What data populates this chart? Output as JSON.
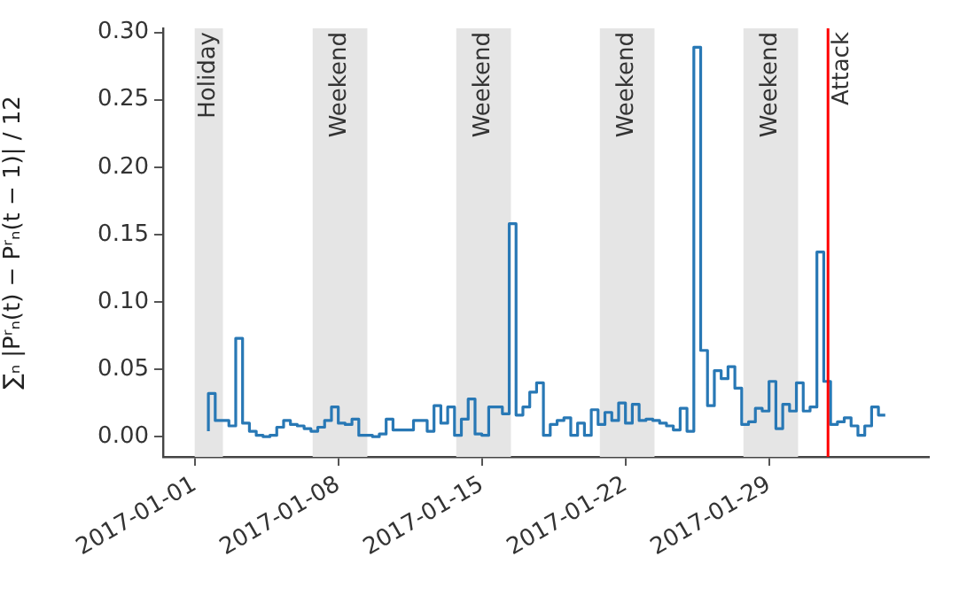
{
  "chart_data": {
    "type": "step",
    "ylabel": "∑ₙ |Pʳₙ(t) − Pʳₙ(t − 1)| / 12",
    "x": [
      "2017-01-01T16:00",
      "2017-01-02T00:00",
      "2017-01-02T08:00",
      "2017-01-02T16:00",
      "2017-01-03T00:00",
      "2017-01-03T08:00",
      "2017-01-03T16:00",
      "2017-01-04T00:00",
      "2017-01-04T08:00",
      "2017-01-04T16:00",
      "2017-01-05T00:00",
      "2017-01-05T08:00",
      "2017-01-05T16:00",
      "2017-01-06T00:00",
      "2017-01-06T08:00",
      "2017-01-06T16:00",
      "2017-01-07T00:00",
      "2017-01-07T08:00",
      "2017-01-07T16:00",
      "2017-01-08T00:00",
      "2017-01-08T08:00",
      "2017-01-08T16:00",
      "2017-01-09T00:00",
      "2017-01-09T08:00",
      "2017-01-09T16:00",
      "2017-01-10T00:00",
      "2017-01-10T08:00",
      "2017-01-10T16:00",
      "2017-01-11T00:00",
      "2017-01-11T08:00",
      "2017-01-11T16:00",
      "2017-01-12T00:00",
      "2017-01-12T08:00",
      "2017-01-12T16:00",
      "2017-01-13T00:00",
      "2017-01-13T08:00",
      "2017-01-13T16:00",
      "2017-01-14T00:00",
      "2017-01-14T08:00",
      "2017-01-14T16:00",
      "2017-01-15T00:00",
      "2017-01-15T08:00",
      "2017-01-15T16:00",
      "2017-01-16T00:00",
      "2017-01-16T08:00",
      "2017-01-16T16:00",
      "2017-01-17T00:00",
      "2017-01-17T08:00",
      "2017-01-17T16:00",
      "2017-01-18T00:00",
      "2017-01-18T08:00",
      "2017-01-18T16:00",
      "2017-01-19T00:00",
      "2017-01-19T08:00",
      "2017-01-19T16:00",
      "2017-01-20T00:00",
      "2017-01-20T08:00",
      "2017-01-20T16:00",
      "2017-01-21T00:00",
      "2017-01-21T08:00",
      "2017-01-21T16:00",
      "2017-01-22T00:00",
      "2017-01-22T08:00",
      "2017-01-22T16:00",
      "2017-01-23T00:00",
      "2017-01-23T08:00",
      "2017-01-23T16:00",
      "2017-01-24T00:00",
      "2017-01-24T08:00",
      "2017-01-24T16:00",
      "2017-01-25T00:00",
      "2017-01-25T08:00",
      "2017-01-25T16:00",
      "2017-01-26T00:00",
      "2017-01-26T08:00",
      "2017-01-26T16:00",
      "2017-01-27T00:00",
      "2017-01-27T08:00",
      "2017-01-27T16:00",
      "2017-01-28T00:00",
      "2017-01-28T08:00",
      "2017-01-28T16:00",
      "2017-01-29T00:00",
      "2017-01-29T08:00",
      "2017-01-29T16:00",
      "2017-01-30T00:00",
      "2017-01-30T08:00",
      "2017-01-30T16:00",
      "2017-01-31T00:00",
      "2017-01-31T08:00",
      "2017-01-31T16:00",
      "2017-02-01T00:00",
      "2017-02-01T08:00",
      "2017-02-01T16:00",
      "2017-02-02T00:00",
      "2017-02-02T08:00",
      "2017-02-02T16:00",
      "2017-02-03T00:00",
      "2017-02-03T08:00",
      "2017-02-03T16:00"
    ],
    "series": [
      {
        "color": "#2878b5",
        "values": [
          0.004,
          0.032,
          0.012,
          0.012,
          0.008,
          0.073,
          0.01,
          0.004,
          0.001,
          0.0,
          0.001,
          0.007,
          0.012,
          0.009,
          0.008,
          0.006,
          0.004,
          0.007,
          0.012,
          0.022,
          0.01,
          0.009,
          0.013,
          0.001,
          0.001,
          0.0,
          0.002,
          0.013,
          0.005,
          0.005,
          0.005,
          0.012,
          0.012,
          0.004,
          0.023,
          0.01,
          0.022,
          0.001,
          0.013,
          0.028,
          0.002,
          0.001,
          0.022,
          0.022,
          0.017,
          0.158,
          0.016,
          0.022,
          0.033,
          0.04,
          0.001,
          0.009,
          0.012,
          0.014,
          0.001,
          0.01,
          0.001,
          0.02,
          0.009,
          0.018,
          0.012,
          0.025,
          0.01,
          0.024,
          0.012,
          0.013,
          0.012,
          0.01,
          0.008,
          0.005,
          0.021,
          0.004,
          0.289,
          0.064,
          0.023,
          0.049,
          0.043,
          0.052,
          0.036,
          0.009,
          0.011,
          0.021,
          0.019,
          0.041,
          0.006,
          0.024,
          0.019,
          0.04,
          0.019,
          0.022,
          0.137,
          0.041,
          0.009,
          0.011,
          0.014,
          0.008,
          0.001,
          0.008,
          0.022,
          0.016
        ]
      }
    ],
    "xlim": [
      "2016-12-30T11:00",
      "2017-02-05T19:00"
    ],
    "xticks": [
      "2017-01-01",
      "2017-01-08",
      "2017-01-15",
      "2017-01-22",
      "2017-01-29"
    ],
    "ylim": [
      -0.015,
      0.303
    ],
    "yticks": [
      {
        "value": 0,
        "label": "0.00"
      },
      {
        "value": 0.05,
        "label": "0.05"
      },
      {
        "value": 0.1,
        "label": "0.10"
      },
      {
        "value": 0.15,
        "label": "0.15"
      },
      {
        "value": 0.2,
        "label": "0.20"
      },
      {
        "value": 0.25,
        "label": "0.25"
      },
      {
        "value": 0.3,
        "label": "0.30"
      }
    ],
    "bands": [
      {
        "axis": "x",
        "from": "2017-01-01T00:00",
        "to": "2017-01-02T09:00",
        "label": "Holiday",
        "color": "#e5e5e5"
      },
      {
        "axis": "x",
        "from": "2017-01-06T18:00",
        "to": "2017-01-09T10:00",
        "label": "Weekend",
        "color": "#e5e5e5"
      },
      {
        "axis": "x",
        "from": "2017-01-13T18:00",
        "to": "2017-01-16T10:00",
        "label": "Weekend",
        "color": "#e5e5e5"
      },
      {
        "axis": "x",
        "from": "2017-01-20T18:00",
        "to": "2017-01-23T10:00",
        "label": "Weekend",
        "color": "#e5e5e5"
      },
      {
        "axis": "x",
        "from": "2017-01-27T18:00",
        "to": "2017-01-30T10:00",
        "label": "Weekend",
        "color": "#e5e5e5"
      }
    ],
    "ref_lines": [
      {
        "axis": "x",
        "value": "2017-01-31T21:00",
        "label": "Attack",
        "color": "#ff0000"
      }
    ],
    "grid": false,
    "legend": false,
    "marker": "none",
    "line_style": "solid"
  }
}
